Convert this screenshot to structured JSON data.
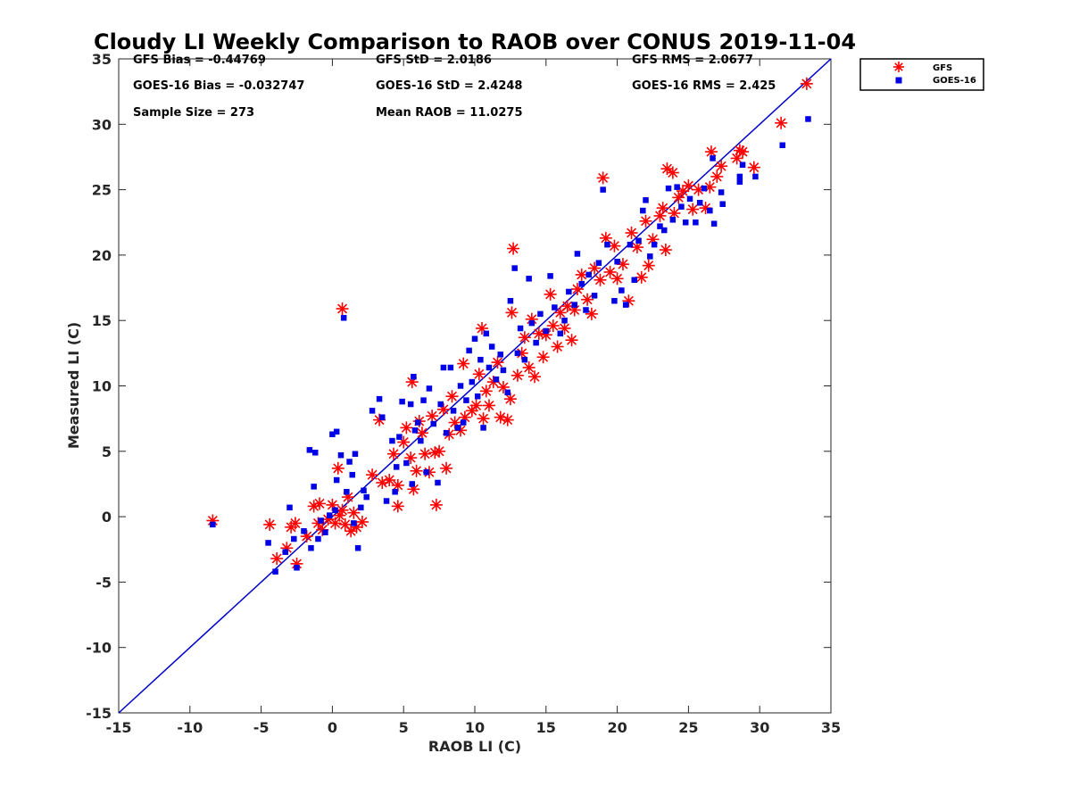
{
  "chart_data": {
    "type": "scatter",
    "title": "Cloudy LI Weekly Comparison to RAOB over CONUS 2019-11-04",
    "xlabel": "RAOB LI (C)",
    "ylabel": "Measured LI (C)",
    "xlim": [
      -15,
      35
    ],
    "ylim": [
      -15,
      35
    ],
    "xticks": [
      "-15",
      "-10",
      "-5",
      "0",
      "5",
      "10",
      "15",
      "20",
      "25",
      "30",
      "35"
    ],
    "yticks": [
      "-15",
      "-10",
      "-5",
      "0",
      "5",
      "10",
      "15",
      "20",
      "25",
      "30",
      "35"
    ],
    "grid": false,
    "legend_position": "outside-top-right",
    "reference_line": {
      "label": "1:1",
      "color": "#0000cc"
    },
    "stats": [
      {
        "label": "GFS Bias = -0.44769"
      },
      {
        "label": "GFS StD = 2.0186"
      },
      {
        "label": "GFS RMS = 2.0677"
      },
      {
        "label": "GOES-16 Bias = -0.032747"
      },
      {
        "label": "GOES-16 StD = 2.4248"
      },
      {
        "label": "GOES-16 RMS = 2.425"
      },
      {
        "label": "Sample Size = 273"
      },
      {
        "label": "Mean RAOB = 11.0275"
      }
    ],
    "series": [
      {
        "name": "GFS",
        "color": "#ff0000",
        "marker": "asterisk",
        "points": [
          [
            -8.4,
            -0.3
          ],
          [
            -4.4,
            -0.6
          ],
          [
            -3.9,
            -3.2
          ],
          [
            -3.2,
            -2.4
          ],
          [
            -2.9,
            -0.8
          ],
          [
            -2.6,
            -0.5
          ],
          [
            -2.5,
            -3.6
          ],
          [
            -1.8,
            -1.5
          ],
          [
            -1.3,
            0.8
          ],
          [
            -1.0,
            -0.5
          ],
          [
            -0.9,
            1.0
          ],
          [
            -0.7,
            -1.0
          ],
          [
            -0.3,
            -0.2
          ],
          [
            0.0,
            0.9
          ],
          [
            0.2,
            -0.5
          ],
          [
            0.4,
            3.7
          ],
          [
            0.5,
            0.1
          ],
          [
            0.7,
            0.5
          ],
          [
            0.7,
            15.9
          ],
          [
            0.9,
            -0.6
          ],
          [
            1.1,
            1.5
          ],
          [
            1.3,
            -1.1
          ],
          [
            1.5,
            0.3
          ],
          [
            1.7,
            -0.8
          ],
          [
            2.1,
            -0.4
          ],
          [
            2.8,
            3.2
          ],
          [
            3.3,
            7.4
          ],
          [
            3.5,
            2.6
          ],
          [
            4.0,
            2.8
          ],
          [
            4.3,
            4.8
          ],
          [
            4.6,
            2.4
          ],
          [
            4.6,
            0.8
          ],
          [
            5.0,
            5.7
          ],
          [
            5.2,
            6.8
          ],
          [
            5.5,
            4.5
          ],
          [
            5.6,
            10.3
          ],
          [
            5.7,
            2.1
          ],
          [
            5.9,
            3.5
          ],
          [
            6.1,
            7.3
          ],
          [
            6.3,
            6.4
          ],
          [
            6.5,
            4.8
          ],
          [
            6.8,
            3.4
          ],
          [
            7.0,
            7.7
          ],
          [
            7.2,
            4.9
          ],
          [
            7.3,
            0.9
          ],
          [
            7.5,
            5.0
          ],
          [
            7.8,
            8.2
          ],
          [
            8.0,
            3.7
          ],
          [
            8.2,
            6.3
          ],
          [
            8.4,
            9.2
          ],
          [
            8.6,
            7.2
          ],
          [
            9.0,
            6.6
          ],
          [
            9.2,
            11.7
          ],
          [
            9.3,
            7.6
          ],
          [
            9.8,
            8.1
          ],
          [
            10.1,
            8.5
          ],
          [
            10.3,
            10.9
          ],
          [
            10.5,
            14.4
          ],
          [
            10.6,
            7.5
          ],
          [
            10.8,
            9.6
          ],
          [
            11.0,
            8.5
          ],
          [
            11.3,
            10.3
          ],
          [
            11.6,
            11.8
          ],
          [
            11.8,
            7.6
          ],
          [
            12.0,
            9.9
          ],
          [
            12.3,
            7.4
          ],
          [
            12.5,
            9.0
          ],
          [
            12.6,
            15.6
          ],
          [
            12.7,
            20.5
          ],
          [
            13.0,
            10.8
          ],
          [
            13.3,
            12.5
          ],
          [
            13.5,
            13.7
          ],
          [
            13.8,
            11.4
          ],
          [
            14.0,
            15.1
          ],
          [
            14.2,
            10.7
          ],
          [
            14.5,
            14.0
          ],
          [
            14.8,
            12.2
          ],
          [
            15.0,
            13.9
          ],
          [
            15.3,
            17.0
          ],
          [
            15.5,
            14.6
          ],
          [
            15.8,
            13.0
          ],
          [
            16.0,
            15.6
          ],
          [
            16.3,
            14.4
          ],
          [
            16.5,
            16.1
          ],
          [
            16.8,
            13.5
          ],
          [
            17.0,
            15.8
          ],
          [
            17.2,
            17.4
          ],
          [
            17.5,
            18.5
          ],
          [
            17.9,
            16.6
          ],
          [
            18.2,
            15.5
          ],
          [
            18.4,
            19.0
          ],
          [
            18.8,
            18.1
          ],
          [
            19.0,
            25.9
          ],
          [
            19.2,
            21.3
          ],
          [
            19.5,
            18.7
          ],
          [
            19.8,
            20.7
          ],
          [
            20.0,
            18.2
          ],
          [
            20.4,
            19.3
          ],
          [
            20.8,
            16.5
          ],
          [
            21.0,
            21.7
          ],
          [
            21.4,
            20.6
          ],
          [
            21.7,
            18.3
          ],
          [
            22.0,
            22.6
          ],
          [
            22.2,
            19.2
          ],
          [
            22.5,
            21.2
          ],
          [
            23.0,
            23.0
          ],
          [
            23.2,
            23.6
          ],
          [
            23.4,
            20.4
          ],
          [
            23.5,
            26.6
          ],
          [
            23.9,
            26.3
          ],
          [
            24.0,
            23.2
          ],
          [
            24.3,
            24.4
          ],
          [
            24.6,
            24.9
          ],
          [
            25.0,
            25.3
          ],
          [
            25.3,
            23.5
          ],
          [
            25.7,
            25.0
          ],
          [
            26.2,
            23.6
          ],
          [
            26.5,
            25.2
          ],
          [
            26.6,
            27.9
          ],
          [
            27.0,
            26.0
          ],
          [
            27.3,
            26.8
          ],
          [
            28.4,
            27.4
          ],
          [
            28.6,
            28.0
          ],
          [
            28.8,
            27.9
          ],
          [
            29.6,
            26.7
          ],
          [
            31.5,
            30.1
          ],
          [
            33.3,
            33.1
          ]
        ]
      },
      {
        "name": "GOES-16",
        "color": "#0000e6",
        "marker": "square",
        "points": [
          [
            -8.4,
            -0.6
          ],
          [
            -4.5,
            -2.0
          ],
          [
            -4.0,
            -4.2
          ],
          [
            -3.3,
            -2.7
          ],
          [
            -3.0,
            0.7
          ],
          [
            -2.7,
            -1.7
          ],
          [
            -2.5,
            -3.9
          ],
          [
            -2.0,
            -1.1
          ],
          [
            -1.5,
            -2.4
          ],
          [
            -1.6,
            5.1
          ],
          [
            -1.3,
            2.3
          ],
          [
            -1.2,
            4.9
          ],
          [
            -1.0,
            -1.7
          ],
          [
            -0.8,
            -0.3
          ],
          [
            -0.5,
            -1.2
          ],
          [
            -0.2,
            0.1
          ],
          [
            0.0,
            6.3
          ],
          [
            0.2,
            0.5
          ],
          [
            0.3,
            6.5
          ],
          [
            0.3,
            2.8
          ],
          [
            0.6,
            4.7
          ],
          [
            0.8,
            15.2
          ],
          [
            1.0,
            1.9
          ],
          [
            1.2,
            4.2
          ],
          [
            1.4,
            3.2
          ],
          [
            1.5,
            -0.5
          ],
          [
            1.6,
            4.8
          ],
          [
            1.8,
            -2.4
          ],
          [
            2.0,
            0.7
          ],
          [
            2.2,
            2.0
          ],
          [
            2.4,
            1.5
          ],
          [
            2.8,
            8.1
          ],
          [
            3.3,
            9.0
          ],
          [
            3.5,
            7.6
          ],
          [
            3.8,
            1.2
          ],
          [
            4.2,
            5.8
          ],
          [
            4.4,
            1.9
          ],
          [
            4.5,
            3.8
          ],
          [
            4.7,
            6.1
          ],
          [
            4.9,
            8.8
          ],
          [
            5.2,
            4.1
          ],
          [
            5.5,
            8.6
          ],
          [
            5.6,
            2.5
          ],
          [
            5.7,
            10.7
          ],
          [
            5.8,
            6.6
          ],
          [
            6.0,
            7.2
          ],
          [
            6.2,
            5.8
          ],
          [
            6.4,
            8.9
          ],
          [
            6.6,
            3.4
          ],
          [
            6.8,
            9.8
          ],
          [
            7.1,
            7.1
          ],
          [
            7.4,
            2.6
          ],
          [
            7.6,
            8.6
          ],
          [
            7.8,
            11.4
          ],
          [
            8.0,
            6.4
          ],
          [
            8.3,
            11.4
          ],
          [
            8.5,
            8.1
          ],
          [
            8.8,
            6.8
          ],
          [
            9.0,
            10.0
          ],
          [
            9.2,
            7.2
          ],
          [
            9.4,
            8.9
          ],
          [
            9.6,
            12.7
          ],
          [
            9.8,
            10.3
          ],
          [
            10.0,
            13.6
          ],
          [
            10.2,
            9.2
          ],
          [
            10.4,
            12.0
          ],
          [
            10.6,
            6.8
          ],
          [
            10.8,
            14.0
          ],
          [
            11.0,
            11.4
          ],
          [
            11.2,
            13.0
          ],
          [
            11.5,
            10.5
          ],
          [
            11.8,
            12.4
          ],
          [
            12.0,
            11.2
          ],
          [
            12.3,
            9.5
          ],
          [
            12.5,
            16.5
          ],
          [
            12.8,
            19.0
          ],
          [
            13.0,
            12.5
          ],
          [
            13.2,
            14.4
          ],
          [
            13.5,
            12.0
          ],
          [
            13.8,
            18.2
          ],
          [
            14.0,
            14.8
          ],
          [
            14.3,
            13.3
          ],
          [
            14.6,
            15.5
          ],
          [
            15.0,
            14.2
          ],
          [
            15.3,
            18.4
          ],
          [
            15.6,
            16.0
          ],
          [
            16.0,
            14.0
          ],
          [
            16.3,
            15.0
          ],
          [
            16.6,
            17.2
          ],
          [
            17.0,
            16.2
          ],
          [
            17.2,
            20.1
          ],
          [
            17.5,
            17.8
          ],
          [
            17.8,
            15.8
          ],
          [
            18.0,
            18.5
          ],
          [
            18.4,
            16.9
          ],
          [
            18.7,
            19.4
          ],
          [
            19.0,
            25.0
          ],
          [
            19.3,
            20.8
          ],
          [
            19.8,
            16.5
          ],
          [
            20.0,
            19.5
          ],
          [
            20.3,
            17.3
          ],
          [
            20.6,
            16.2
          ],
          [
            20.9,
            20.8
          ],
          [
            21.2,
            18.1
          ],
          [
            21.5,
            21.1
          ],
          [
            21.8,
            23.4
          ],
          [
            22.0,
            24.2
          ],
          [
            22.3,
            19.9
          ],
          [
            22.6,
            20.8
          ],
          [
            23.0,
            22.2
          ],
          [
            23.3,
            21.9
          ],
          [
            23.6,
            25.1
          ],
          [
            23.9,
            22.7
          ],
          [
            24.2,
            25.2
          ],
          [
            24.5,
            23.7
          ],
          [
            24.8,
            22.5
          ],
          [
            25.1,
            24.3
          ],
          [
            25.5,
            22.5
          ],
          [
            25.8,
            24.0
          ],
          [
            26.1,
            25.1
          ],
          [
            26.5,
            23.4
          ],
          [
            26.7,
            27.4
          ],
          [
            26.8,
            22.4
          ],
          [
            27.3,
            24.8
          ],
          [
            27.4,
            23.9
          ],
          [
            28.6,
            25.6
          ],
          [
            28.6,
            26.0
          ],
          [
            28.8,
            26.9
          ],
          [
            29.7,
            26.0
          ],
          [
            31.6,
            28.4
          ],
          [
            33.4,
            30.4
          ]
        ]
      }
    ]
  }
}
